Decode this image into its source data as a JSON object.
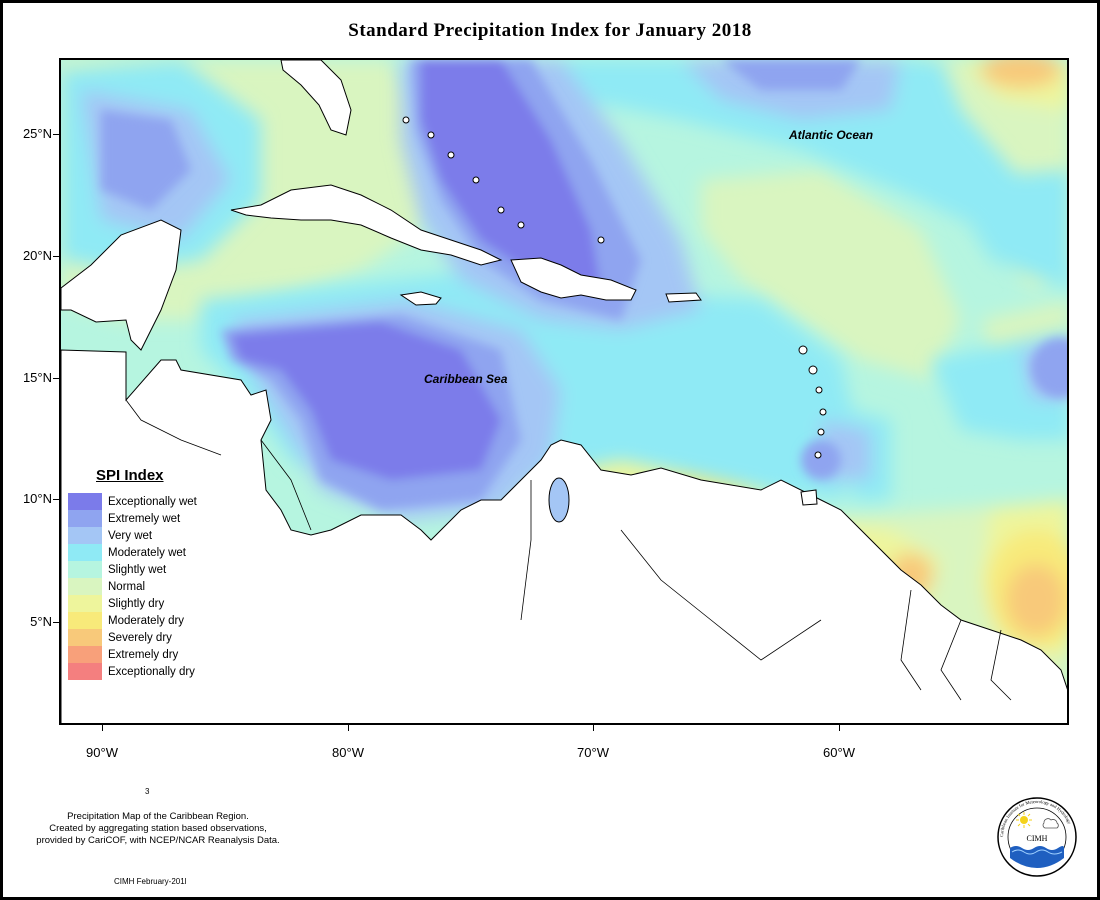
{
  "title": "Standard Precipitation Index for January 2018",
  "map": {
    "latitude_labels": [
      "25°N",
      "20°N",
      "15°N",
      "10°N",
      "5°N"
    ],
    "longitude_labels": [
      "90°W",
      "80°W",
      "70°W",
      "60°W"
    ],
    "labels": {
      "atlantic": "Atlantic Ocean",
      "caribbean": "Caribbean Sea"
    }
  },
  "legend": {
    "title": "SPI Index",
    "items": [
      {
        "label": "Exceptionally wet",
        "color": "#7b7bea"
      },
      {
        "label": "Extremely wet",
        "color": "#8fa4f0"
      },
      {
        "label": "Very wet",
        "color": "#a4c6f5"
      },
      {
        "label": "Moderately wet",
        "color": "#8feaf5"
      },
      {
        "label": "Slightly wet",
        "color": "#b6f5e0"
      },
      {
        "label": "Normal",
        "color": "#d9f5c0"
      },
      {
        "label": "Slightly dry",
        "color": "#eef59c"
      },
      {
        "label": "Moderately dry",
        "color": "#f8ea7a"
      },
      {
        "label": "Severely dry",
        "color": "#f8c97a"
      },
      {
        "label": "Extremely dry",
        "color": "#f8a07a"
      },
      {
        "label": "Exceptionally dry",
        "color": "#f47f7f"
      }
    ]
  },
  "credit": {
    "line1": "Precipitation Map of the Caribbean Region.",
    "line2": "Created by aggregating station based observations,",
    "line3": "provided by CariCOF, with NCEP/NCAR Reanalysis Data."
  },
  "stamp": "CIMH February-201l",
  "stray_mark": "3",
  "logo": {
    "abbr": "CIMH",
    "ring_text": "Caribbean Institute for Meteorology and Hydrology"
  }
}
